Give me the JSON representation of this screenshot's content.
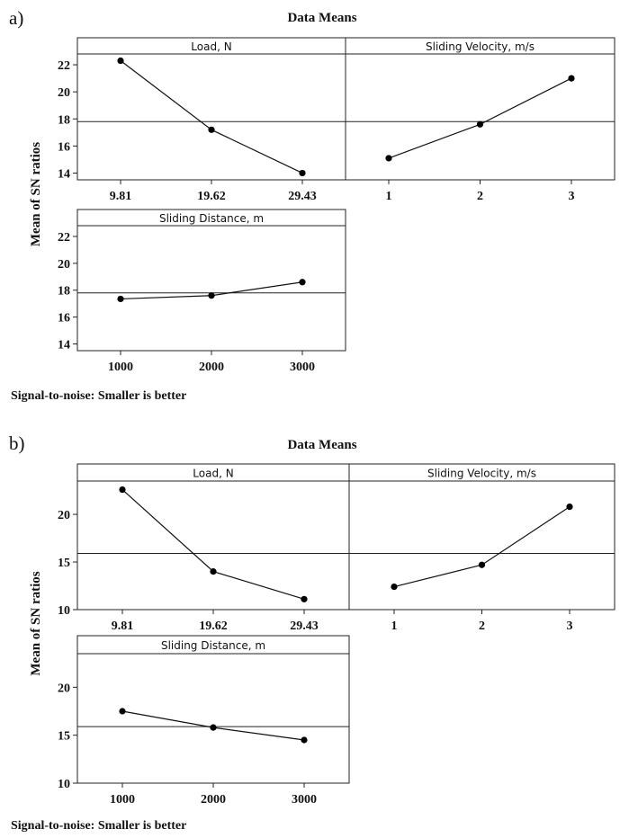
{
  "chart_data": [
    {
      "type": "line",
      "letter": "a)",
      "title": "Data Means",
      "ylabel": "Mean of SN ratios",
      "footer": "Signal-to-noise: Smaller is better",
      "ylim": [
        13.5,
        22.8
      ],
      "yticks": [
        "14",
        "16",
        "18",
        "20",
        "22"
      ],
      "overall_mean": 17.8,
      "panels": [
        {
          "title": "Load, N",
          "categories": [
            "9.81",
            "19.62",
            "29.43"
          ],
          "values": [
            22.3,
            17.2,
            14.0
          ]
        },
        {
          "title": "Sliding Velocity, m/s",
          "categories": [
            "1",
            "2",
            "3"
          ],
          "values": [
            15.1,
            17.6,
            21.0
          ]
        },
        {
          "title": "Sliding Distance, m",
          "categories": [
            "1000",
            "2000",
            "3000"
          ],
          "values": [
            17.35,
            17.6,
            18.6
          ]
        }
      ]
    },
    {
      "type": "line",
      "letter": "b)",
      "title": "Data Means",
      "ylabel": "Mean of SN ratios",
      "footer": "Signal-to-noise: Smaller is better",
      "ylim": [
        10,
        23.5
      ],
      "yticks": [
        "10",
        "15",
        "20"
      ],
      "overall_mean": 15.9,
      "panels": [
        {
          "title": "Load, N",
          "categories": [
            "9.81",
            "19.62",
            "29.43"
          ],
          "values": [
            22.6,
            14.0,
            11.1
          ]
        },
        {
          "title": "Sliding Velocity, m/s",
          "categories": [
            "1",
            "2",
            "3"
          ],
          "values": [
            12.4,
            14.7,
            20.8
          ]
        },
        {
          "title": "Sliding Distance, m",
          "categories": [
            "1000",
            "2000",
            "3000"
          ],
          "values": [
            17.5,
            15.8,
            14.5
          ]
        }
      ]
    }
  ]
}
